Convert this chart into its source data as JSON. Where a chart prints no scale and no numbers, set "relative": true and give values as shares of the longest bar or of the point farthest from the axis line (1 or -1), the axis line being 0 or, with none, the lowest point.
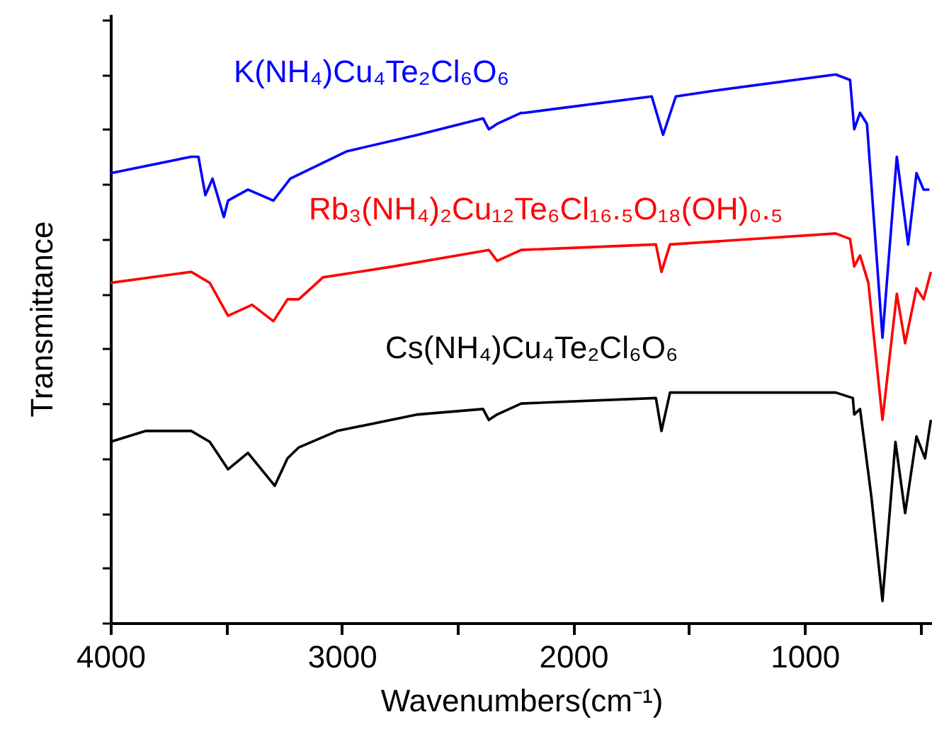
{
  "chart_data": {
    "type": "line",
    "relative": true,
    "xlabel": "Wavenumbers(cm⁻¹)",
    "ylabel": "Transmittance",
    "xlim": [
      4000,
      450
    ],
    "xticks": [
      4000,
      3000,
      2000,
      1000,
      {
        "value": 3500,
        "label": null
      },
      {
        "value": 2500,
        "label": null
      },
      {
        "value": 1500,
        "label": null
      },
      {
        "value": 500,
        "label": null
      }
    ],
    "tick_labels": "x",
    "grid": false,
    "series": [
      {
        "name": "K(NH₄)Cu₄Te₂Cl₆O₆",
        "color": "#0000ff",
        "x": [
          4000,
          3651,
          3620,
          3590,
          3559,
          3510,
          3492,
          3406,
          3296,
          3223,
          2978,
          2672,
          2390,
          2365,
          2329,
          2225,
          2212,
          1661,
          1612,
          1557,
          1398,
          866,
          804,
          786,
          761,
          731,
          664,
          602,
          553,
          517,
          486,
          461
        ],
        "values": [
          0.82,
          0.85,
          0.85,
          0.78,
          0.81,
          0.74,
          0.77,
          0.79,
          0.77,
          0.81,
          0.86,
          0.89,
          0.92,
          0.9,
          0.91,
          0.93,
          0.93,
          0.96,
          0.89,
          0.96,
          0.97,
          1.0,
          0.99,
          0.9,
          0.93,
          0.91,
          0.52,
          0.85,
          0.69,
          0.82,
          0.79,
          0.79
        ]
      },
      {
        "name": "Rb₃(NH₄)₂Cu₁₂Te₆Cl₁₆.₅O₁₈(OH)₀.₅",
        "color": "#ff0000",
        "x": [
          4000,
          3651,
          3571,
          3492,
          3388,
          3296,
          3235,
          3186,
          3082,
          2776,
          2365,
          2329,
          2225,
          1643,
          1619,
          1582,
          866,
          804,
          786,
          761,
          725,
          664,
          602,
          566,
          517,
          486,
          455
        ],
        "values": [
          0.62,
          0.64,
          0.62,
          0.56,
          0.58,
          0.55,
          0.59,
          0.59,
          0.63,
          0.65,
          0.68,
          0.66,
          0.68,
          0.69,
          0.64,
          0.69,
          0.71,
          0.7,
          0.65,
          0.67,
          0.62,
          0.37,
          0.6,
          0.51,
          0.61,
          0.59,
          0.64
        ]
      },
      {
        "name": "Cs(NH₄)Cu₄Te₂Cl₆O₆",
        "color": "#000000",
        "x": [
          4000,
          3847,
          3743,
          3651,
          3571,
          3492,
          3406,
          3290,
          3235,
          3186,
          3020,
          2672,
          2390,
          2365,
          2329,
          2225,
          1643,
          1619,
          1582,
          866,
          792,
          786,
          761,
          712,
          664,
          608,
          566,
          517,
          480,
          455
        ],
        "values": [
          0.33,
          0.35,
          0.35,
          0.35,
          0.33,
          0.28,
          0.31,
          0.25,
          0.3,
          0.32,
          0.35,
          0.38,
          0.39,
          0.37,
          0.38,
          0.4,
          0.41,
          0.35,
          0.42,
          0.42,
          0.41,
          0.38,
          0.39,
          0.23,
          0.04,
          0.33,
          0.2,
          0.34,
          0.3,
          0.37
        ]
      }
    ]
  }
}
